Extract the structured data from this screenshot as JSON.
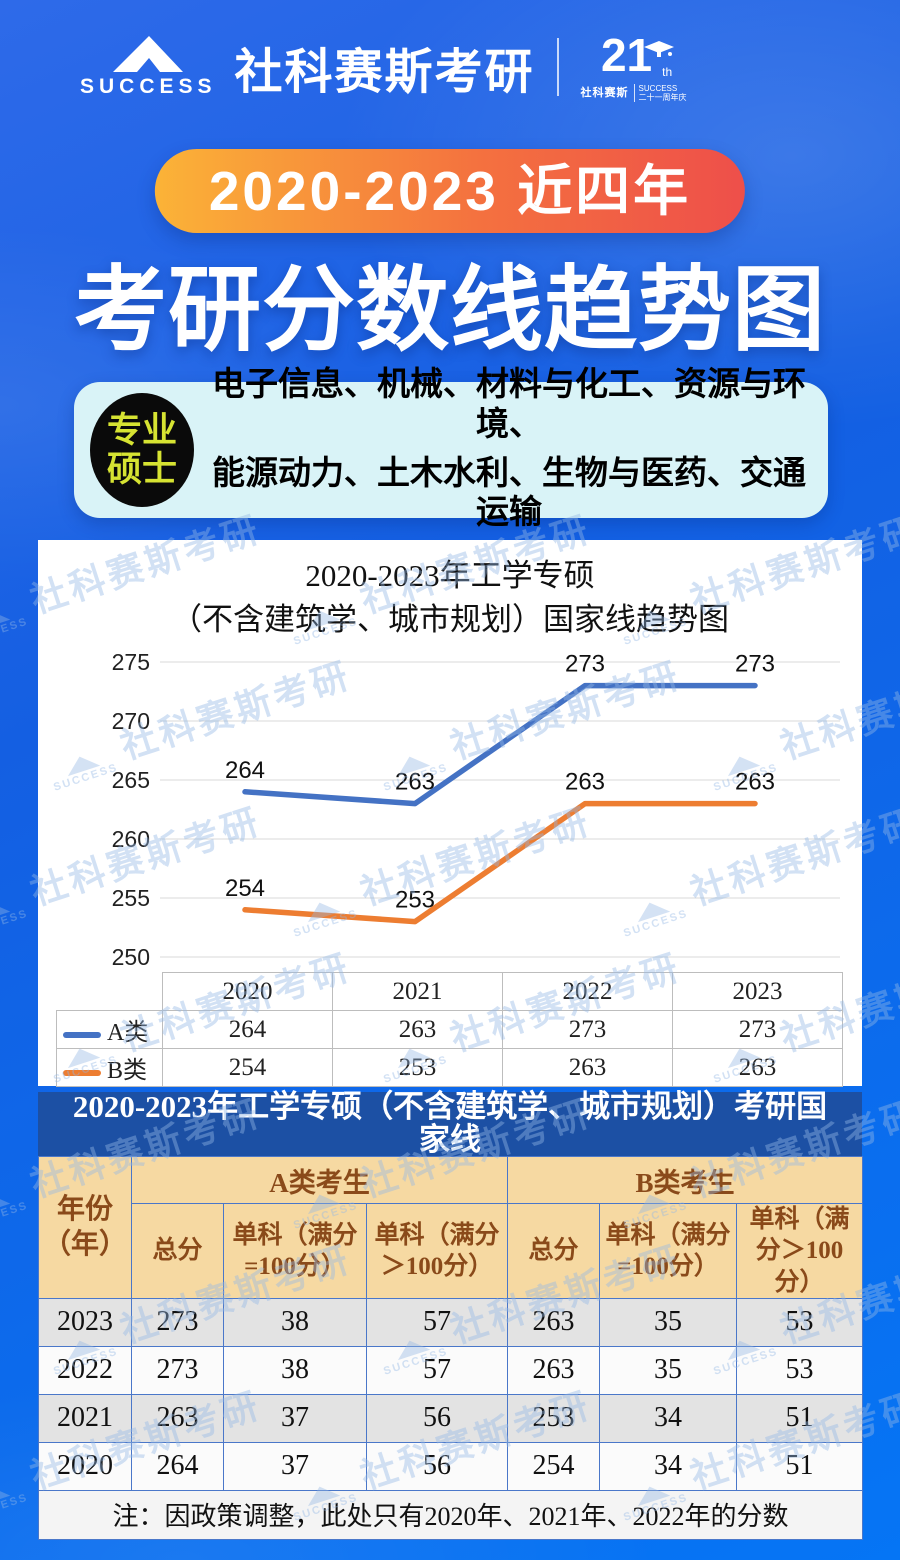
{
  "header": {
    "logo_word": "SUCCESS",
    "brand": "社科赛斯考研",
    "anniversary": {
      "number": "21",
      "suffix": "th",
      "cn": "社科赛斯",
      "en_line1": "SUCCESS",
      "en_line2": "二十一周年庆"
    }
  },
  "hero": {
    "pill": "2020-2023 近四年",
    "title": "考研分数线趋势图"
  },
  "badge": {
    "label_line1": "专业",
    "label_line2": "硕士",
    "majors_line1": "电子信息、机械、材料与化工、资源与环境、",
    "majors_line2": "能源动力、土木水利、生物与医药、交通运输"
  },
  "chart_card": {
    "title_line1": "2020-2023年工学专硕",
    "title_line2": "（不含建筑学、城市规划）国家线趋势图"
  },
  "chart_data": {
    "type": "line",
    "title": "2020-2023年工学专硕（不含建筑学、城市规划）国家线趋势图",
    "categories": [
      "2020",
      "2021",
      "2022",
      "2023"
    ],
    "series": [
      {
        "name": "A类",
        "color": "#4472c4",
        "values": [
          264,
          263,
          273,
          273
        ]
      },
      {
        "name": "B类",
        "color": "#ed7d31",
        "values": [
          254,
          253,
          263,
          263
        ]
      }
    ],
    "ylim": [
      250,
      275
    ],
    "yticks": [
      275,
      270,
      265,
      260,
      255,
      250
    ],
    "grid": true,
    "gridline_color": "#d8d8d8",
    "legend_position": "bottom-table"
  },
  "score_table": {
    "title": "2020-2023年工学专硕（不含建筑学、城市规划）考研国家线",
    "col_year_line1": "年份",
    "col_year_line2": "（年）",
    "group_a": "A类考生",
    "group_b": "B类考生",
    "sub_headers": [
      "总分",
      "单科（满分=100分）",
      "单科（满分＞100分）",
      "总分",
      "单科（满分=100分）",
      "单科（满分＞100分）"
    ],
    "rows": [
      {
        "year": "2023",
        "values": [
          "273",
          "38",
          "57",
          "263",
          "35",
          "53"
        ]
      },
      {
        "year": "2022",
        "values": [
          "273",
          "38",
          "57",
          "263",
          "35",
          "53"
        ]
      },
      {
        "year": "2021",
        "values": [
          "263",
          "37",
          "56",
          "253",
          "34",
          "51"
        ]
      },
      {
        "year": "2020",
        "values": [
          "264",
          "37",
          "56",
          "254",
          "34",
          "51"
        ]
      }
    ],
    "note": "注：因政策调整，此处只有2020年、2021年、2022年的分数"
  },
  "watermark": {
    "cn": "社科赛斯考研",
    "en": "SUCCESS"
  },
  "colors": {
    "page_blue": "#0a6bee",
    "band_navy": "#1c50a4",
    "header_tan": "#f6d9a2",
    "header_brown": "#8a4a1a",
    "row_gray": "#e3e3e3",
    "pill_gradient_left": "#fbb337",
    "pill_gradient_right": "#ee4f4a",
    "badge_bg": "#d9f3f7",
    "badge_label_yellow": "#d6e332",
    "series_a_blue": "#4472c4",
    "series_b_orange": "#ed7d31"
  }
}
